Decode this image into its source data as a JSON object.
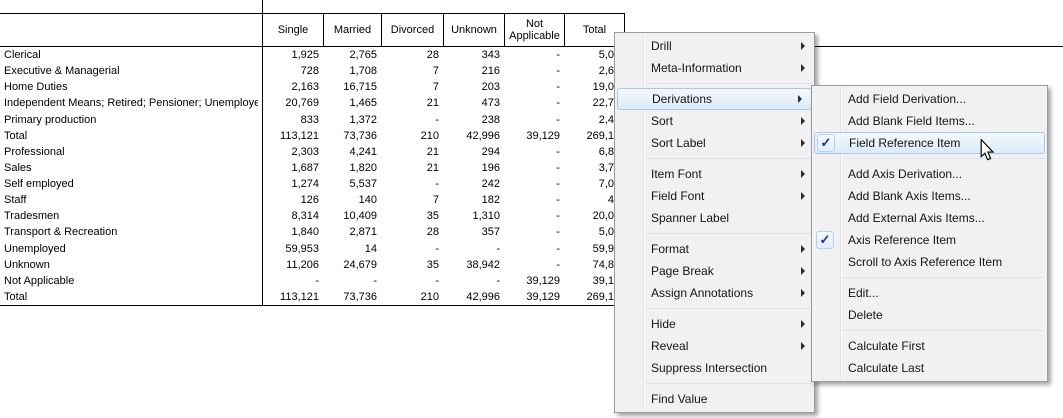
{
  "table": {
    "columns": [
      "Single",
      "Married",
      "Divorced",
      "Unknown",
      "Not Applicable",
      "Total"
    ],
    "rows": [
      {
        "label": "Clerical",
        "values": [
          "1,925",
          "2,765",
          "28",
          "343",
          "-",
          "5,0"
        ]
      },
      {
        "label": "Executive & Managerial",
        "values": [
          "728",
          "1,708",
          "7",
          "216",
          "-",
          "2,6"
        ]
      },
      {
        "label": "Home Duties",
        "values": [
          "2,163",
          "16,715",
          "7",
          "203",
          "-",
          "19,0"
        ]
      },
      {
        "label": "Independent Means; Retired; Pensioner; Unemployed",
        "values": [
          "20,769",
          "1,465",
          "21",
          "473",
          "-",
          "22,7"
        ]
      },
      {
        "label": "Primary production",
        "values": [
          "833",
          "1,372",
          "-",
          "238",
          "-",
          "2,4"
        ]
      },
      {
        "label": "Total",
        "values": [
          "113,121",
          "73,736",
          "210",
          "42,996",
          "39,129",
          "269,1"
        ]
      },
      {
        "label": "Professional",
        "values": [
          "2,303",
          "4,241",
          "21",
          "294",
          "-",
          "6,8"
        ]
      },
      {
        "label": "Sales",
        "values": [
          "1,687",
          "1,820",
          "21",
          "196",
          "-",
          "3,7"
        ]
      },
      {
        "label": "Self employed",
        "values": [
          "1,274",
          "5,537",
          "-",
          "242",
          "-",
          "7,0"
        ]
      },
      {
        "label": "Staff",
        "values": [
          "126",
          "140",
          "7",
          "182",
          "-",
          "4"
        ]
      },
      {
        "label": "Tradesmen",
        "values": [
          "8,314",
          "10,409",
          "35",
          "1,310",
          "-",
          "20,0"
        ]
      },
      {
        "label": "Transport & Recreation",
        "values": [
          "1,840",
          "2,871",
          "28",
          "357",
          "-",
          "5,0"
        ]
      },
      {
        "label": "Unemployed",
        "values": [
          "59,953",
          "14",
          "-",
          "-",
          "-",
          "59,9"
        ]
      },
      {
        "label": "Unknown",
        "values": [
          "11,206",
          "24,679",
          "35",
          "38,942",
          "-",
          "74,8"
        ]
      },
      {
        "label": "Not Applicable",
        "values": [
          "-",
          "-",
          "-",
          "-",
          "39,129",
          "39,1"
        ]
      },
      {
        "label": "Total",
        "values": [
          "113,121",
          "73,736",
          "210",
          "42,996",
          "39,129",
          "269,1"
        ]
      }
    ]
  },
  "context_menu": {
    "items": [
      {
        "label": "Drill",
        "arrow": true
      },
      {
        "label": "Meta-Information",
        "arrow": true
      },
      {
        "separator": true
      },
      {
        "label": "Derivations",
        "arrow": true,
        "highlighted": true
      },
      {
        "label": "Sort",
        "arrow": true
      },
      {
        "label": "Sort Label",
        "arrow": true
      },
      {
        "separator": true
      },
      {
        "label": "Item Font",
        "arrow": true
      },
      {
        "label": "Field Font",
        "arrow": true
      },
      {
        "label": "Spanner Label"
      },
      {
        "separator": true
      },
      {
        "label": "Format",
        "arrow": true
      },
      {
        "label": "Page Break",
        "arrow": true
      },
      {
        "label": "Assign Annotations",
        "arrow": true
      },
      {
        "separator": true
      },
      {
        "label": "Hide",
        "arrow": true
      },
      {
        "label": "Reveal",
        "arrow": true
      },
      {
        "label": "Suppress Intersection"
      },
      {
        "separator": true
      },
      {
        "label": "Find Value"
      }
    ]
  },
  "submenu": {
    "items": [
      {
        "label": "Add Field Derivation..."
      },
      {
        "label": "Add Blank Field Items..."
      },
      {
        "label": "Field Reference Item",
        "checked": true,
        "highlighted": true
      },
      {
        "separator": true
      },
      {
        "label": "Add Axis Derivation..."
      },
      {
        "label": "Add Blank Axis Items..."
      },
      {
        "label": "Add External Axis Items..."
      },
      {
        "label": "Axis Reference Item",
        "checked": true
      },
      {
        "label": "Scroll to Axis Reference Item"
      },
      {
        "separator": true
      },
      {
        "label": "Edit..."
      },
      {
        "label": "Delete"
      },
      {
        "separator": true
      },
      {
        "label": "Calculate First"
      },
      {
        "label": "Calculate Last"
      }
    ]
  },
  "icons": {
    "checkmark": "✓"
  },
  "colors": {
    "highlight-border": "#a9c7e8",
    "highlight-fill-top": "#f4f9fd",
    "highlight-fill-bottom": "#dcebf9",
    "check-color": "#1f2d9b",
    "menu-bg": "#f1f1f3",
    "menu-border": "#9b9b9b",
    "separator-color": "#e0e0e3",
    "table-line": "#000000"
  }
}
